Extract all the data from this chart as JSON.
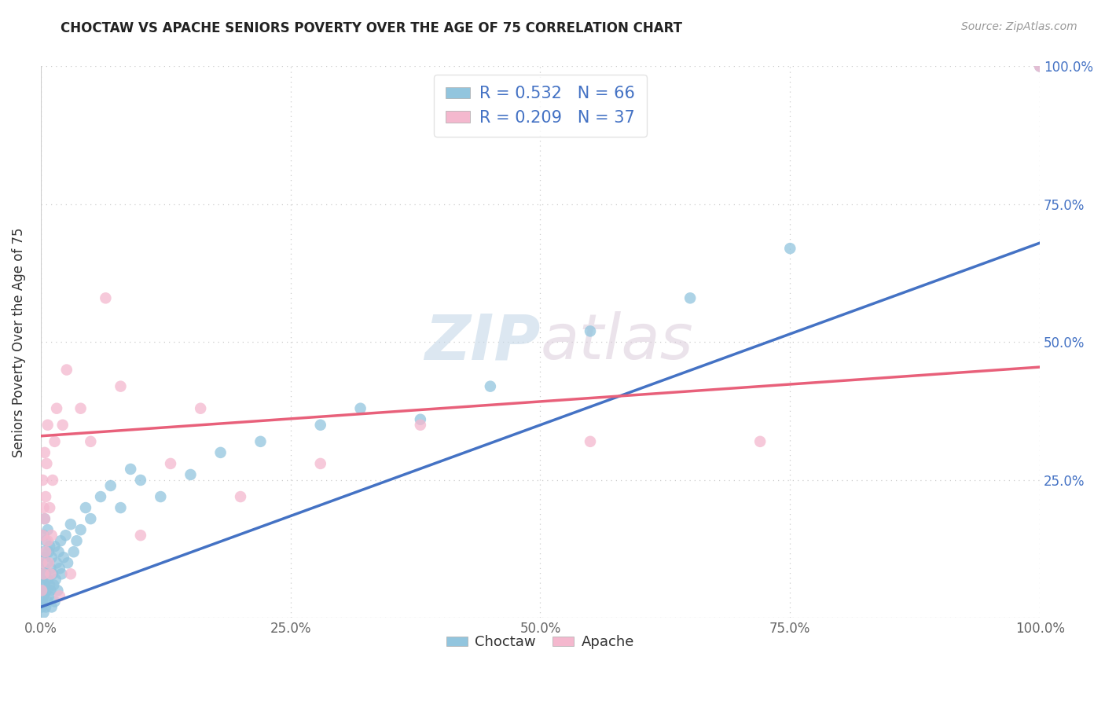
{
  "title": "CHOCTAW VS APACHE SENIORS POVERTY OVER THE AGE OF 75 CORRELATION CHART",
  "source": "Source: ZipAtlas.com",
  "ylabel": "Seniors Poverty Over the Age of 75",
  "choctaw_R": 0.532,
  "choctaw_N": 66,
  "apache_R": 0.209,
  "apache_N": 37,
  "choctaw_color": "#92c5de",
  "apache_color": "#f4b8ce",
  "choctaw_line_color": "#4472c4",
  "apache_line_color": "#e8607a",
  "legend_label_choctaw": "Choctaw",
  "legend_label_apache": "Apache",
  "watermark_zip": "ZIP",
  "watermark_atlas": "atlas",
  "choctaw_x": [
    0.001,
    0.001,
    0.001,
    0.002,
    0.002,
    0.002,
    0.003,
    0.003,
    0.003,
    0.003,
    0.004,
    0.004,
    0.004,
    0.005,
    0.005,
    0.005,
    0.006,
    0.006,
    0.007,
    0.007,
    0.007,
    0.008,
    0.008,
    0.009,
    0.009,
    0.01,
    0.01,
    0.011,
    0.011,
    0.012,
    0.013,
    0.014,
    0.014,
    0.015,
    0.016,
    0.017,
    0.018,
    0.019,
    0.02,
    0.021,
    0.023,
    0.025,
    0.027,
    0.03,
    0.033,
    0.036,
    0.04,
    0.045,
    0.05,
    0.06,
    0.07,
    0.08,
    0.09,
    0.1,
    0.12,
    0.15,
    0.18,
    0.22,
    0.28,
    0.32,
    0.38,
    0.45,
    0.55,
    0.65,
    0.75,
    1.0
  ],
  "choctaw_y": [
    0.02,
    0.05,
    0.08,
    0.03,
    0.07,
    0.12,
    0.01,
    0.04,
    0.09,
    0.15,
    0.06,
    0.11,
    0.18,
    0.02,
    0.08,
    0.14,
    0.05,
    0.1,
    0.03,
    0.07,
    0.16,
    0.04,
    0.12,
    0.06,
    0.13,
    0.05,
    0.09,
    0.02,
    0.11,
    0.08,
    0.06,
    0.03,
    0.13,
    0.07,
    0.1,
    0.05,
    0.12,
    0.09,
    0.14,
    0.08,
    0.11,
    0.15,
    0.1,
    0.17,
    0.12,
    0.14,
    0.16,
    0.2,
    0.18,
    0.22,
    0.24,
    0.2,
    0.27,
    0.25,
    0.22,
    0.26,
    0.3,
    0.32,
    0.35,
    0.38,
    0.36,
    0.42,
    0.52,
    0.58,
    0.67,
    1.0
  ],
  "apache_x": [
    0.001,
    0.001,
    0.002,
    0.002,
    0.003,
    0.003,
    0.004,
    0.004,
    0.005,
    0.005,
    0.006,
    0.007,
    0.007,
    0.008,
    0.009,
    0.01,
    0.011,
    0.012,
    0.014,
    0.016,
    0.019,
    0.022,
    0.026,
    0.03,
    0.04,
    0.05,
    0.065,
    0.08,
    0.1,
    0.13,
    0.16,
    0.2,
    0.28,
    0.38,
    0.55,
    0.72,
    1.0
  ],
  "apache_y": [
    0.05,
    0.1,
    0.15,
    0.25,
    0.08,
    0.2,
    0.18,
    0.3,
    0.12,
    0.22,
    0.28,
    0.14,
    0.35,
    0.1,
    0.2,
    0.08,
    0.15,
    0.25,
    0.32,
    0.38,
    0.04,
    0.35,
    0.45,
    0.08,
    0.38,
    0.32,
    0.58,
    0.42,
    0.15,
    0.28,
    0.38,
    0.22,
    0.28,
    0.35,
    0.32,
    0.32,
    1.0
  ],
  "choctaw_line_x": [
    0.0,
    1.0
  ],
  "choctaw_line_y": [
    0.02,
    0.68
  ],
  "apache_line_x": [
    0.0,
    1.0
  ],
  "apache_line_y": [
    0.33,
    0.455
  ],
  "xlim": [
    0.0,
    1.0
  ],
  "ylim": [
    0.0,
    1.0
  ],
  "xticks": [
    0.0,
    0.25,
    0.5,
    0.75,
    1.0
  ],
  "yticks": [
    0.0,
    0.25,
    0.5,
    0.75,
    1.0
  ],
  "xticklabels": [
    "0.0%",
    "25.0%",
    "50.0%",
    "75.0%",
    "100.0%"
  ],
  "right_ytick_positions": [
    0.25,
    0.5,
    0.75,
    1.0
  ],
  "right_yticklabels": [
    "25.0%",
    "50.0%",
    "75.0%",
    "100.0%"
  ]
}
